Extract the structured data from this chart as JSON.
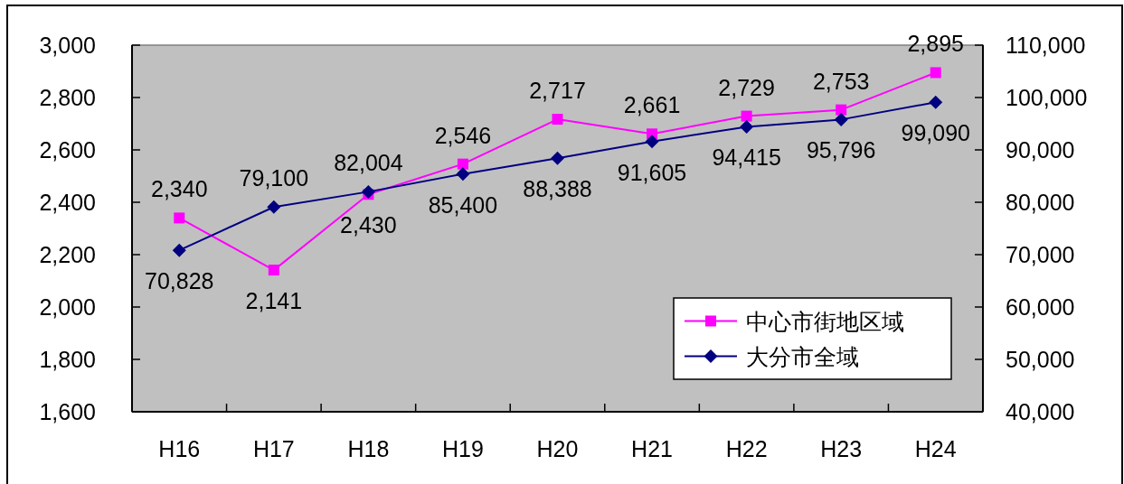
{
  "chart_data": {
    "type": "line",
    "categories": [
      "H16",
      "H17",
      "H18",
      "H19",
      "H20",
      "H21",
      "H22",
      "H23",
      "H24"
    ],
    "series": [
      {
        "name": "中心市街地区域",
        "color": "#ff00ff",
        "marker": "square",
        "values": [
          2340,
          2141,
          2430,
          2546,
          2717,
          2661,
          2729,
          2753,
          2895
        ],
        "value_labels": [
          "2,340",
          "2,141",
          "2,430",
          "2,546",
          "2,717",
          "2,661",
          "2,729",
          "2,753",
          "2,895"
        ]
      },
      {
        "name": "大分市全域",
        "color": "#000080",
        "marker": "diamond",
        "axis": "y2",
        "values": [
          70828,
          79100,
          82004,
          85400,
          88388,
          91605,
          94415,
          95796,
          99090
        ],
        "value_labels": [
          "70,828",
          "79,100",
          "82,004",
          "85,400",
          "88,388",
          "91,605",
          "94,415",
          "95,796",
          "99,090"
        ]
      }
    ],
    "ylim": [
      1600,
      3000
    ],
    "yticks": [
      {
        "value": 1600,
        "label": "1,600"
      },
      {
        "value": 1800,
        "label": "1,800"
      },
      {
        "value": 2000,
        "label": "2,000"
      },
      {
        "value": 2200,
        "label": "2,200"
      },
      {
        "value": 2400,
        "label": "2,400"
      },
      {
        "value": 2600,
        "label": "2,600"
      },
      {
        "value": 2800,
        "label": "2,800"
      },
      {
        "value": 3000,
        "label": "3,000"
      }
    ],
    "y2lim": [
      40000,
      110000
    ],
    "y2ticks": [
      {
        "value": 40000,
        "label": "40,000"
      },
      {
        "value": 50000,
        "label": "50,000"
      },
      {
        "value": 60000,
        "label": "60,000"
      },
      {
        "value": 70000,
        "label": "70,000"
      },
      {
        "value": 80000,
        "label": "80,000"
      },
      {
        "value": 90000,
        "label": "90,000"
      },
      {
        "value": 100000,
        "label": "100,000"
      },
      {
        "value": 110000,
        "label": "110,000"
      }
    ],
    "legend": "bottom right"
  }
}
